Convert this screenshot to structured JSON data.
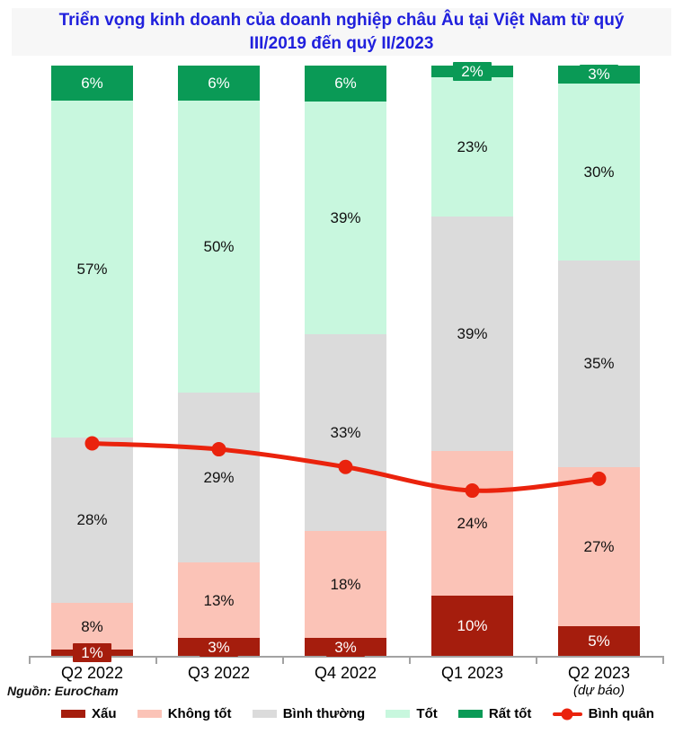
{
  "title": {
    "lines": [
      "Triển vọng kinh doanh của doanh nghiệp châu Âu tại Việt Nam từ quý",
      "III/2019 đến quý II/2023"
    ],
    "color": "#2020dd"
  },
  "source": "Nguồn: EuroCham",
  "colors": {
    "title_blue": "#2020dd",
    "axis_gray": "#a3a3a3",
    "background": "#ffffff",
    "title_box_bg": "#f7f7f7"
  },
  "chart_data": {
    "type": "bar",
    "stacked": true,
    "percent_stacked": true,
    "title": "Triển vọng kinh doanh của doanh nghiệp châu Âu tại Việt Nam từ quý III/2019 đến quý II/2023",
    "categories": [
      "Q2 2022",
      "Q3 2022",
      "Q4 2022",
      "Q1 2023",
      "Q2 2023"
    ],
    "category_notes": [
      "",
      "",
      "",
      "",
      "(dự báo)"
    ],
    "value_suffix": "%",
    "ylim": [
      0,
      100
    ],
    "grid": false,
    "legend_position": "bottom",
    "series": [
      {
        "name": "Xấu",
        "color": "#a51d0d",
        "text_color": "#ffffff",
        "values": [
          1,
          3,
          3,
          10,
          5
        ]
      },
      {
        "name": "Không tốt",
        "color": "#fbc3b7",
        "text_color": "#111111",
        "values": [
          8,
          13,
          18,
          24,
          27
        ]
      },
      {
        "name": "Bình thường",
        "color": "#dbdbdb",
        "text_color": "#111111",
        "values": [
          28,
          29,
          33,
          39,
          35
        ]
      },
      {
        "name": "Tốt",
        "color": "#c8f7de",
        "text_color": "#111111",
        "values": [
          57,
          50,
          39,
          23,
          30
        ]
      },
      {
        "name": "Rất tốt",
        "color": "#0a9a56",
        "text_color": "#ffffff",
        "values": [
          6,
          6,
          6,
          2,
          3
        ]
      }
    ],
    "line_series": {
      "name": "Bình quân",
      "color": "#ea230d",
      "values": [
        36,
        35,
        32,
        28,
        30
      ]
    }
  }
}
